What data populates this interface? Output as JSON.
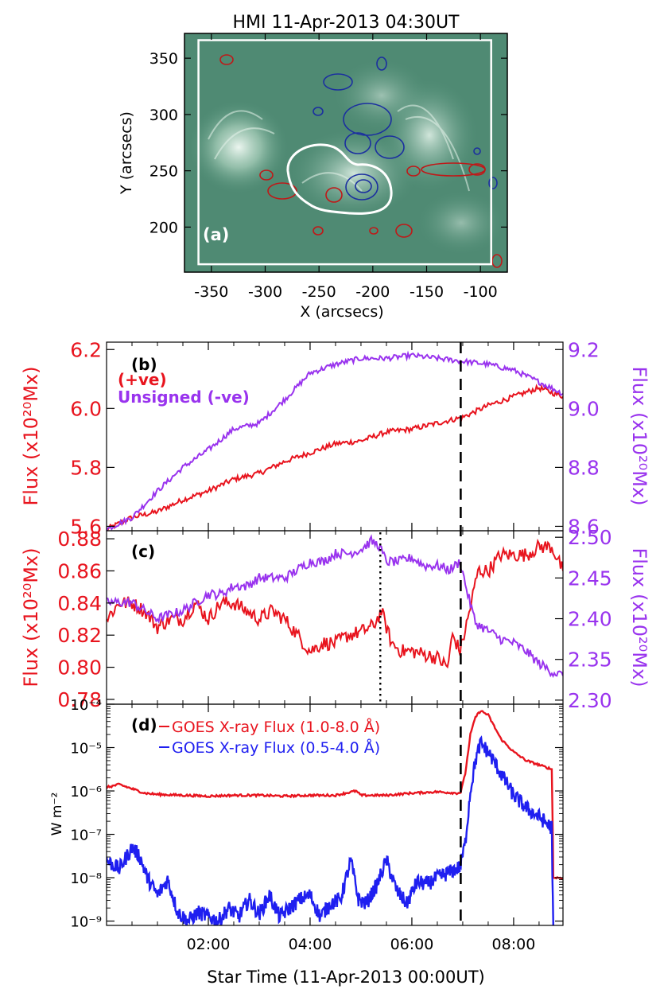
{
  "chart_data": [
    {
      "id": "a",
      "type": "image",
      "title": "HMI 11-Apr-2013 04:30UT",
      "panel_label": "(a)",
      "xlabel": "X (arcsecs)",
      "ylabel": "Y (arcsecs)",
      "xlim": [
        -375,
        -75
      ],
      "ylim": [
        160,
        372
      ],
      "x_ticks": [
        "-350",
        "-300",
        "-250",
        "-200",
        "-150",
        "-100"
      ],
      "x_tick_values": [
        -350,
        -300,
        -250,
        -200,
        -150,
        -100
      ],
      "y_ticks": [
        "350",
        "300",
        "250",
        "200"
      ],
      "y_tick_values": [
        350,
        300,
        250,
        200
      ],
      "box": {
        "x": [
          -362,
          -90
        ],
        "y": [
          167,
          366
        ]
      },
      "colors": {
        "background": "#4f8a73",
        "positive_contour": "#c01818",
        "negative_contour": "#1b2fa0",
        "box": "#ffffff"
      }
    },
    {
      "id": "b",
      "type": "line",
      "panel_label": "(b)",
      "legend": [
        "(+ve)",
        "Unsigned (-ve)"
      ],
      "ylabel": "Flux (x10²⁰Mx)",
      "y2label": "Flux (x10²⁰Mx)",
      "ylim": [
        5.585,
        6.225
      ],
      "y2lim": [
        8.585,
        9.225
      ],
      "y_ticks": [
        "6.2",
        "6.0",
        "5.8",
        "5.6"
      ],
      "y_tick_values": [
        6.2,
        6.0,
        5.8,
        5.6
      ],
      "y2_ticks": [
        "9.2",
        "9.0",
        "8.8",
        "8.6"
      ],
      "y2_tick_values": [
        9.2,
        9.0,
        8.8,
        8.6
      ],
      "xlim": [
        0.0,
        8.97
      ],
      "series": [
        {
          "name": "(+ve)",
          "axis": "left",
          "color": "#e8141e",
          "x": [
            0.0,
            0.5,
            1.0,
            1.5,
            2.0,
            2.5,
            3.0,
            3.5,
            4.0,
            4.5,
            5.0,
            5.5,
            6.0,
            6.5,
            7.0,
            7.5,
            8.0,
            8.5,
            8.97
          ],
          "values": [
            5.59,
            5.63,
            5.65,
            5.69,
            5.72,
            5.76,
            5.78,
            5.82,
            5.85,
            5.88,
            5.89,
            5.92,
            5.93,
            5.95,
            5.97,
            6.01,
            6.04,
            6.07,
            6.04
          ]
        },
        {
          "name": "Unsigned (-ve)",
          "axis": "right",
          "color": "#9933ee",
          "x": [
            0.0,
            0.5,
            1.0,
            1.5,
            2.0,
            2.5,
            3.0,
            3.5,
            4.0,
            4.5,
            5.0,
            5.5,
            6.0,
            6.5,
            7.0,
            7.5,
            8.0,
            8.5,
            8.97
          ],
          "values": [
            8.59,
            8.63,
            8.72,
            8.8,
            8.86,
            8.93,
            8.95,
            9.03,
            9.12,
            9.15,
            9.17,
            9.17,
            9.18,
            9.17,
            9.16,
            9.15,
            9.13,
            9.09,
            9.05
          ]
        }
      ]
    },
    {
      "id": "c",
      "type": "line",
      "panel_label": "(c)",
      "ylabel": "Flux (x10²⁰Mx)",
      "y2label": "Flux (x10²⁰Mx)",
      "ylim": [
        0.777,
        0.885
      ],
      "y2lim": [
        2.295,
        2.508
      ],
      "y_ticks": [
        "0.88",
        "0.86",
        "0.84",
        "0.82",
        "0.80",
        "0.78"
      ],
      "y_tick_values": [
        0.88,
        0.86,
        0.84,
        0.82,
        0.8,
        0.78
      ],
      "y2_ticks": [
        "2.50",
        "2.45",
        "2.40",
        "2.35",
        "2.30"
      ],
      "y2_tick_values": [
        2.5,
        2.45,
        2.4,
        2.35,
        2.3
      ],
      "xlim": [
        0.0,
        8.97
      ],
      "dotted_line_x": 5.38,
      "series": [
        {
          "name": "+ve",
          "axis": "left",
          "color": "#e8141e",
          "x": [
            0.0,
            0.25,
            0.5,
            0.75,
            1.0,
            1.25,
            1.5,
            1.75,
            2.0,
            2.25,
            2.5,
            2.75,
            3.0,
            3.25,
            3.5,
            3.75,
            4.0,
            4.25,
            4.5,
            4.75,
            5.0,
            5.25,
            5.4,
            5.6,
            5.8,
            6.0,
            6.25,
            6.5,
            6.7,
            6.8,
            6.95,
            7.1,
            7.3,
            7.5,
            7.75,
            8.0,
            8.25,
            8.5,
            8.75,
            8.97
          ],
          "values": [
            0.83,
            0.84,
            0.84,
            0.835,
            0.825,
            0.83,
            0.83,
            0.84,
            0.83,
            0.84,
            0.84,
            0.835,
            0.83,
            0.835,
            0.83,
            0.82,
            0.81,
            0.815,
            0.815,
            0.82,
            0.822,
            0.826,
            0.835,
            0.815,
            0.81,
            0.81,
            0.808,
            0.806,
            0.8,
            0.82,
            0.81,
            0.83,
            0.86,
            0.86,
            0.87,
            0.87,
            0.87,
            0.875,
            0.875,
            0.86
          ]
        },
        {
          "name": "-ve",
          "axis": "right",
          "color": "#9933ee",
          "x": [
            0.0,
            0.25,
            0.5,
            0.75,
            1.0,
            1.25,
            1.5,
            1.75,
            2.0,
            2.25,
            2.5,
            2.75,
            3.0,
            3.25,
            3.5,
            3.75,
            4.0,
            4.25,
            4.5,
            4.75,
            5.0,
            5.2,
            5.35,
            5.5,
            5.75,
            6.0,
            6.25,
            6.5,
            6.75,
            6.95,
            7.1,
            7.25,
            7.5,
            7.75,
            8.0,
            8.25,
            8.5,
            8.75,
            8.97
          ],
          "values": [
            2.42,
            2.42,
            2.42,
            2.41,
            2.4,
            2.405,
            2.41,
            2.42,
            2.43,
            2.43,
            2.44,
            2.44,
            2.45,
            2.45,
            2.45,
            2.46,
            2.47,
            2.47,
            2.48,
            2.48,
            2.485,
            2.495,
            2.49,
            2.47,
            2.47,
            2.475,
            2.465,
            2.465,
            2.46,
            2.47,
            2.43,
            2.395,
            2.385,
            2.375,
            2.37,
            2.36,
            2.345,
            2.335,
            2.33
          ]
        }
      ]
    },
    {
      "id": "d",
      "type": "line",
      "panel_label": "(d)",
      "yscale": "log",
      "ylabel": "W m⁻²",
      "xlabel": "Star Time (11-Apr-2013 00:00UT)",
      "ylim_log10": [
        -9.1,
        -4.0
      ],
      "y_ticks": [
        "10⁻⁴",
        "10⁻⁵",
        "10⁻⁶",
        "10⁻⁷",
        "10⁻⁸",
        "10⁻⁹"
      ],
      "y_tick_exponents": [
        -4,
        -5,
        -6,
        -7,
        -8,
        -9
      ],
      "x_ticks": [
        "02:00",
        "04:00",
        "06:00",
        "08:00"
      ],
      "x_tick_values": [
        2,
        4,
        6,
        8
      ],
      "xlim": [
        0.0,
        8.97
      ],
      "series": [
        {
          "name": "GOES X-ray Flux (1.0-8.0 Å)",
          "color": "#e8141e",
          "x": [
            0.0,
            0.25,
            0.5,
            0.75,
            1.0,
            1.5,
            2.0,
            2.5,
            3.0,
            3.5,
            4.0,
            4.5,
            4.9,
            5.0,
            5.5,
            6.0,
            6.5,
            6.9,
            6.96,
            7.05,
            7.15,
            7.25,
            7.35,
            7.5,
            7.75,
            8.0,
            8.25,
            8.5,
            8.75,
            8.77,
            8.78,
            8.97
          ],
          "values_log10": [
            -5.92,
            -5.85,
            -5.95,
            -6.05,
            -6.08,
            -6.1,
            -6.12,
            -6.1,
            -6.1,
            -6.12,
            -6.1,
            -6.1,
            -6.0,
            -6.1,
            -6.1,
            -6.05,
            -6.02,
            -6.05,
            -6.03,
            -5.6,
            -4.7,
            -4.3,
            -4.15,
            -4.25,
            -4.8,
            -5.1,
            -5.3,
            -5.4,
            -5.5,
            -7.0,
            -8.0,
            -8.0
          ]
        },
        {
          "name": "GOES X-ray Flux (0.5-4.0 Å)",
          "color": "#1f1ff0",
          "x": [
            0.0,
            0.25,
            0.5,
            0.65,
            0.8,
            1.0,
            1.2,
            1.4,
            1.6,
            1.8,
            2.0,
            2.2,
            2.4,
            2.6,
            2.8,
            3.0,
            3.2,
            3.4,
            3.6,
            3.8,
            4.0,
            4.2,
            4.4,
            4.6,
            4.8,
            4.95,
            5.1,
            5.3,
            5.5,
            5.7,
            5.9,
            6.1,
            6.3,
            6.5,
            6.7,
            6.95,
            7.05,
            7.15,
            7.25,
            7.35,
            7.5,
            7.75,
            8.0,
            8.25,
            8.5,
            8.75,
            8.76,
            8.78
          ],
          "values_log10": [
            -7.6,
            -7.8,
            -7.3,
            -7.5,
            -8.0,
            -8.4,
            -8.05,
            -8.8,
            -9.0,
            -8.8,
            -8.9,
            -9.0,
            -8.7,
            -8.9,
            -8.5,
            -8.85,
            -8.4,
            -8.9,
            -8.7,
            -8.5,
            -8.4,
            -8.9,
            -8.6,
            -8.5,
            -7.6,
            -8.5,
            -8.6,
            -8.2,
            -7.6,
            -8.3,
            -8.6,
            -8.1,
            -8.15,
            -8.0,
            -7.9,
            -7.75,
            -7.2,
            -6.0,
            -5.3,
            -4.9,
            -5.1,
            -5.6,
            -6.1,
            -6.4,
            -6.6,
            -6.85,
            -8.0,
            -9.1
          ]
        }
      ]
    }
  ]
}
